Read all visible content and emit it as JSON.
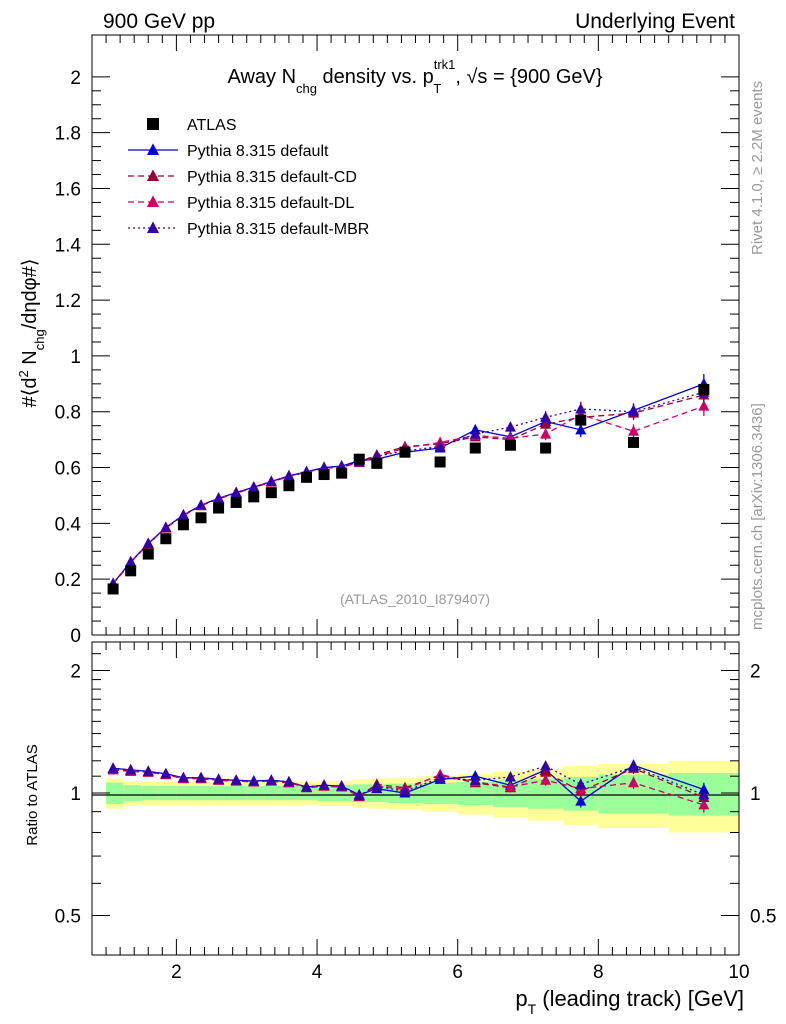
{
  "header": {
    "left": "900 GeV pp",
    "right": "Underlying Event"
  },
  "side_labels": {
    "rivet": "Rivet 4.1.0, ≥ 2.2M events",
    "mcplots": "mcplots.cern.ch [arXiv:1306.3436]"
  },
  "analysis_id": "(ATLAS_2010_I879407)",
  "chart_data": [
    {
      "type": "scatter",
      "panel": "main",
      "title": "Away N_chg density vs. p_T^trk1, √s = {900 GeV}",
      "title_parts": {
        "away": "Away N",
        "chg": "chg",
        "density_vs": " density vs. p",
        "trk1": "trk1",
        "T": "T",
        "sqrt_s": ", √s = {900 GeV}"
      },
      "ylabel": "#⟨d² N_chg/dηdφ#⟩",
      "ylabel_parts": {
        "pre": "#⟨d",
        "sq": "2",
        "N": " N",
        "chg": "chg",
        "post": "/dηdφ#⟩"
      },
      "xlim": [
        0.8,
        10.0
      ],
      "ylim": [
        0.0,
        2.15
      ],
      "y_ticks": [
        0,
        0.2,
        0.4,
        0.6,
        0.8,
        1,
        1.2,
        1.4,
        1.6,
        1.8,
        2
      ],
      "y_tick_labels": [
        "0",
        "0.2",
        "0.4",
        "0.6",
        "0.8",
        "1",
        "1.2",
        "1.4",
        "1.6",
        "1.8",
        "2"
      ],
      "x": [
        1.1,
        1.35,
        1.6,
        1.85,
        2.1,
        2.35,
        2.6,
        2.85,
        3.1,
        3.35,
        3.6,
        3.85,
        4.1,
        4.35,
        4.6,
        4.85,
        5.25,
        5.75,
        6.25,
        6.75,
        7.25,
        7.75,
        8.5,
        9.5
      ],
      "series": [
        {
          "name": "ATLAS",
          "style": "data",
          "color": "#000000",
          "values": [
            0.165,
            0.23,
            0.29,
            0.345,
            0.395,
            0.42,
            0.455,
            0.475,
            0.495,
            0.51,
            0.535,
            0.565,
            0.575,
            0.58,
            0.63,
            0.615,
            0.655,
            0.62,
            0.67,
            0.68,
            0.67,
            0.77,
            0.69,
            0.88
          ]
        },
        {
          "name": "Pythia 8.315 default",
          "style": "solid",
          "color": "#0000dd",
          "values": [
            0.185,
            0.262,
            0.328,
            0.385,
            0.43,
            0.465,
            0.49,
            0.51,
            0.53,
            0.55,
            0.57,
            0.585,
            0.6,
            0.605,
            0.625,
            0.63,
            0.655,
            0.67,
            0.735,
            0.71,
            0.765,
            0.735,
            0.805,
            0.9
          ],
          "errors": [
            0.005,
            0.005,
            0.005,
            0.005,
            0.005,
            0.005,
            0.005,
            0.005,
            0.005,
            0.005,
            0.006,
            0.006,
            0.006,
            0.007,
            0.008,
            0.009,
            0.01,
            0.012,
            0.015,
            0.018,
            0.022,
            0.026,
            0.025,
            0.035
          ]
        },
        {
          "name": "Pythia 8.315 default-CD",
          "style": "dashed",
          "color": "#990033",
          "values": [
            0.183,
            0.26,
            0.326,
            0.383,
            0.428,
            0.463,
            0.488,
            0.508,
            0.528,
            0.548,
            0.568,
            0.583,
            0.598,
            0.6,
            0.62,
            0.645,
            0.675,
            0.685,
            0.71,
            0.7,
            0.755,
            0.78,
            0.795,
            0.86
          ],
          "errors": [
            0.005,
            0.005,
            0.005,
            0.005,
            0.005,
            0.005,
            0.005,
            0.005,
            0.005,
            0.005,
            0.006,
            0.006,
            0.006,
            0.007,
            0.008,
            0.009,
            0.01,
            0.012,
            0.015,
            0.018,
            0.022,
            0.026,
            0.025,
            0.035
          ]
        },
        {
          "name": "Pythia 8.315 default-DL",
          "style": "dashed",
          "color": "#cc0066",
          "values": [
            0.184,
            0.261,
            0.327,
            0.384,
            0.429,
            0.464,
            0.489,
            0.509,
            0.529,
            0.549,
            0.569,
            0.584,
            0.599,
            0.602,
            0.618,
            0.64,
            0.67,
            0.69,
            0.715,
            0.705,
            0.72,
            0.79,
            0.73,
            0.82
          ],
          "errors": [
            0.005,
            0.005,
            0.005,
            0.005,
            0.005,
            0.005,
            0.005,
            0.005,
            0.005,
            0.005,
            0.006,
            0.006,
            0.006,
            0.007,
            0.008,
            0.009,
            0.01,
            0.012,
            0.015,
            0.018,
            0.022,
            0.026,
            0.025,
            0.035
          ]
        },
        {
          "name": "Pythia 8.315 default-MBR",
          "style": "dotted",
          "color": "#3300aa",
          "values": [
            0.184,
            0.262,
            0.328,
            0.385,
            0.43,
            0.465,
            0.49,
            0.51,
            0.53,
            0.55,
            0.57,
            0.585,
            0.6,
            0.605,
            0.62,
            0.64,
            0.66,
            0.675,
            0.72,
            0.745,
            0.78,
            0.81,
            0.8,
            0.87
          ],
          "errors": [
            0.005,
            0.005,
            0.005,
            0.005,
            0.005,
            0.005,
            0.005,
            0.005,
            0.005,
            0.005,
            0.006,
            0.006,
            0.006,
            0.007,
            0.008,
            0.009,
            0.01,
            0.012,
            0.015,
            0.018,
            0.022,
            0.026,
            0.025,
            0.035
          ]
        }
      ]
    },
    {
      "type": "scatter",
      "panel": "ratio",
      "ylabel": "Ratio to ATLAS",
      "xlabel": "p_T (leading track) [GeV]",
      "xlabel_parts": {
        "p": "p",
        "T": "T",
        "rest": " (leading track) [GeV]"
      },
      "xlim": [
        0.8,
        10.0
      ],
      "ylim": [
        0.4,
        2.35
      ],
      "y_scale": "log",
      "x_ticks": [
        2,
        4,
        6,
        8,
        10
      ],
      "x_tick_labels": [
        "2",
        "4",
        "6",
        "8",
        "10"
      ],
      "y_ticks": [
        0.5,
        1,
        2
      ],
      "y_tick_labels": [
        "0.5",
        "1",
        "2"
      ],
      "bin_edges": [
        1.0,
        1.25,
        1.5,
        1.75,
        2.0,
        2.25,
        2.5,
        2.75,
        3.0,
        3.25,
        3.5,
        3.75,
        4.0,
        4.25,
        4.5,
        4.75,
        5.0,
        5.5,
        6.0,
        6.5,
        7.0,
        7.5,
        8.0,
        9.0,
        10.0
      ],
      "band_stat": [
        0.06,
        0.045,
        0.04,
        0.04,
        0.04,
        0.04,
        0.04,
        0.04,
        0.04,
        0.04,
        0.04,
        0.04,
        0.045,
        0.045,
        0.05,
        0.05,
        0.055,
        0.06,
        0.065,
        0.075,
        0.085,
        0.095,
        0.11,
        0.12
      ],
      "band_total": [
        0.085,
        0.07,
        0.065,
        0.065,
        0.065,
        0.065,
        0.065,
        0.065,
        0.065,
        0.065,
        0.065,
        0.065,
        0.07,
        0.07,
        0.08,
        0.085,
        0.09,
        0.1,
        0.115,
        0.13,
        0.145,
        0.165,
        0.18,
        0.2
      ],
      "band_colors": {
        "stat": "#99ff99",
        "total": "#ffff99"
      },
      "series_ratios": [
        {
          "name": "Pythia 8.315 default",
          "values": [
            1.15,
            1.14,
            1.13,
            1.115,
            1.09,
            1.09,
            1.08,
            1.075,
            1.07,
            1.075,
            1.065,
            1.035,
            1.045,
            1.04,
            0.99,
            1.025,
            1.0,
            1.08,
            1.1,
            1.045,
            1.14,
            0.955,
            1.17,
            1.02
          ]
        },
        {
          "name": "Pythia 8.315 default-CD",
          "values": [
            1.14,
            1.13,
            1.125,
            1.11,
            1.085,
            1.085,
            1.075,
            1.07,
            1.065,
            1.07,
            1.06,
            1.03,
            1.04,
            1.035,
            0.985,
            1.05,
            1.03,
            1.105,
            1.06,
            1.03,
            1.125,
            1.01,
            1.15,
            0.975
          ]
        },
        {
          "name": "Pythia 8.315 default-DL",
          "values": [
            1.145,
            1.135,
            1.125,
            1.11,
            1.085,
            1.085,
            1.075,
            1.07,
            1.065,
            1.07,
            1.06,
            1.035,
            1.04,
            1.035,
            0.98,
            1.04,
            1.02,
            1.11,
            1.065,
            1.035,
            1.075,
            1.025,
            1.06,
            0.935
          ]
        },
        {
          "name": "Pythia 8.315 default-MBR",
          "values": [
            1.15,
            1.14,
            1.13,
            1.115,
            1.09,
            1.09,
            1.08,
            1.075,
            1.07,
            1.075,
            1.065,
            1.035,
            1.045,
            1.04,
            0.985,
            1.04,
            1.01,
            1.09,
            1.075,
            1.095,
            1.165,
            1.05,
            1.16,
            0.99
          ]
        }
      ]
    }
  ]
}
